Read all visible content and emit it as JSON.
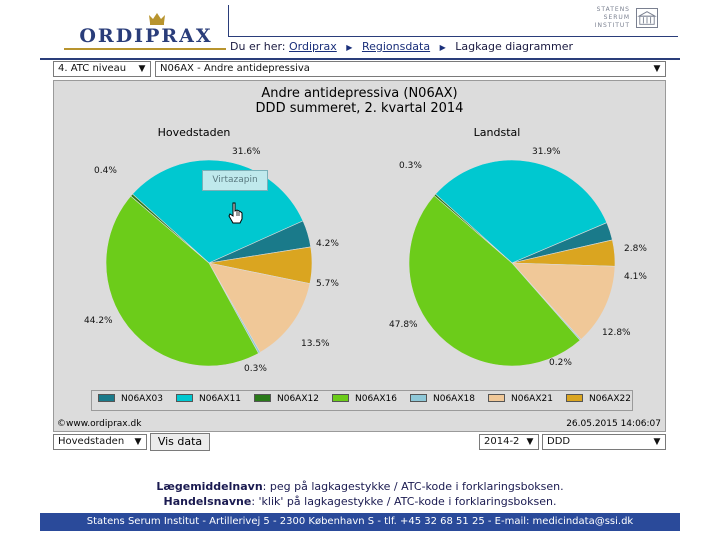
{
  "header": {
    "logo_text": "ORDIPRAX",
    "ssi_lines": [
      "STATENS",
      "SERUM",
      "INSTITUT"
    ],
    "breadcrumb_prefix": "Du er her:",
    "breadcrumb": [
      "Ordiprax",
      "Regionsdata",
      "Lagkage diagrammer"
    ]
  },
  "controls": {
    "level_select": "4. ATC niveau",
    "atc_select": "N06AX - Andre antidepressiva",
    "region_select": "Hovedstaden",
    "show_button": "Vis data",
    "quarter_select": "2014-2",
    "measure_select": "DDD"
  },
  "tooltip": "Virtazapin",
  "copyright": "©www.ordiprax.dk",
  "timestamp": "26.05.2015 14:06:07",
  "instructions": {
    "line1_bold": "Lægemiddelnavn",
    "line1_rest": ": peg på lagkagestykke / ATC-kode i forklaringsboksen.",
    "line2_bold": "Handelsnavne",
    "line2_rest": ": 'klik' på lagkagestykke / ATC-kode i forklaringsboksen."
  },
  "footer": "Statens Serum Institut  -  Artillerivej 5  -  2300 København S  -  tlf. +45 32 68 51 25  -  E-mail: medicindata@ssi.dk",
  "chart_data": {
    "type": "pie",
    "title": "Andre antidepressiva (N06AX)",
    "subtitle": "DDD summeret, 2. kvartal 2014",
    "legend": [
      {
        "code": "N06AX03",
        "color": "#1a7a8a"
      },
      {
        "code": "N06AX11",
        "color": "#00c8d0"
      },
      {
        "code": "N06AX12",
        "color": "#2a7a1a"
      },
      {
        "code": "N06AX16",
        "color": "#6ccc1a"
      },
      {
        "code": "N06AX18",
        "color": "#8ec8d8"
      },
      {
        "code": "N06AX21",
        "color": "#f0c898"
      },
      {
        "code": "N06AX22",
        "color": "#daa520"
      }
    ],
    "pies": [
      {
        "name": "Hovedstaden",
        "slices": [
          {
            "code": "N06AX11",
            "value": 31.6,
            "label": "31.6%"
          },
          {
            "code": "N06AX03",
            "value": 4.2,
            "label": "4.2%"
          },
          {
            "code": "N06AX22",
            "value": 5.7,
            "label": "5.7%"
          },
          {
            "code": "N06AX21",
            "value": 13.5,
            "label": "13.5%"
          },
          {
            "code": "N06AX18",
            "value": 0.3,
            "label": "0.3%"
          },
          {
            "code": "N06AX16",
            "value": 44.2,
            "label": "44.2%"
          },
          {
            "code": "N06AX12",
            "value": 0.4,
            "label": "0.4%"
          }
        ]
      },
      {
        "name": "Landstal",
        "slices": [
          {
            "code": "N06AX11",
            "value": 31.9,
            "label": "31.9%"
          },
          {
            "code": "N06AX03",
            "value": 2.8,
            "label": "2.8%"
          },
          {
            "code": "N06AX22",
            "value": 4.1,
            "label": "4.1%"
          },
          {
            "code": "N06AX21",
            "value": 12.8,
            "label": "12.8%"
          },
          {
            "code": "N06AX18",
            "value": 0.2,
            "label": "0.2%"
          },
          {
            "code": "N06AX16",
            "value": 47.8,
            "label": "47.8%"
          },
          {
            "code": "N06AX12",
            "value": 0.3,
            "label": "0.3%"
          }
        ]
      }
    ]
  }
}
